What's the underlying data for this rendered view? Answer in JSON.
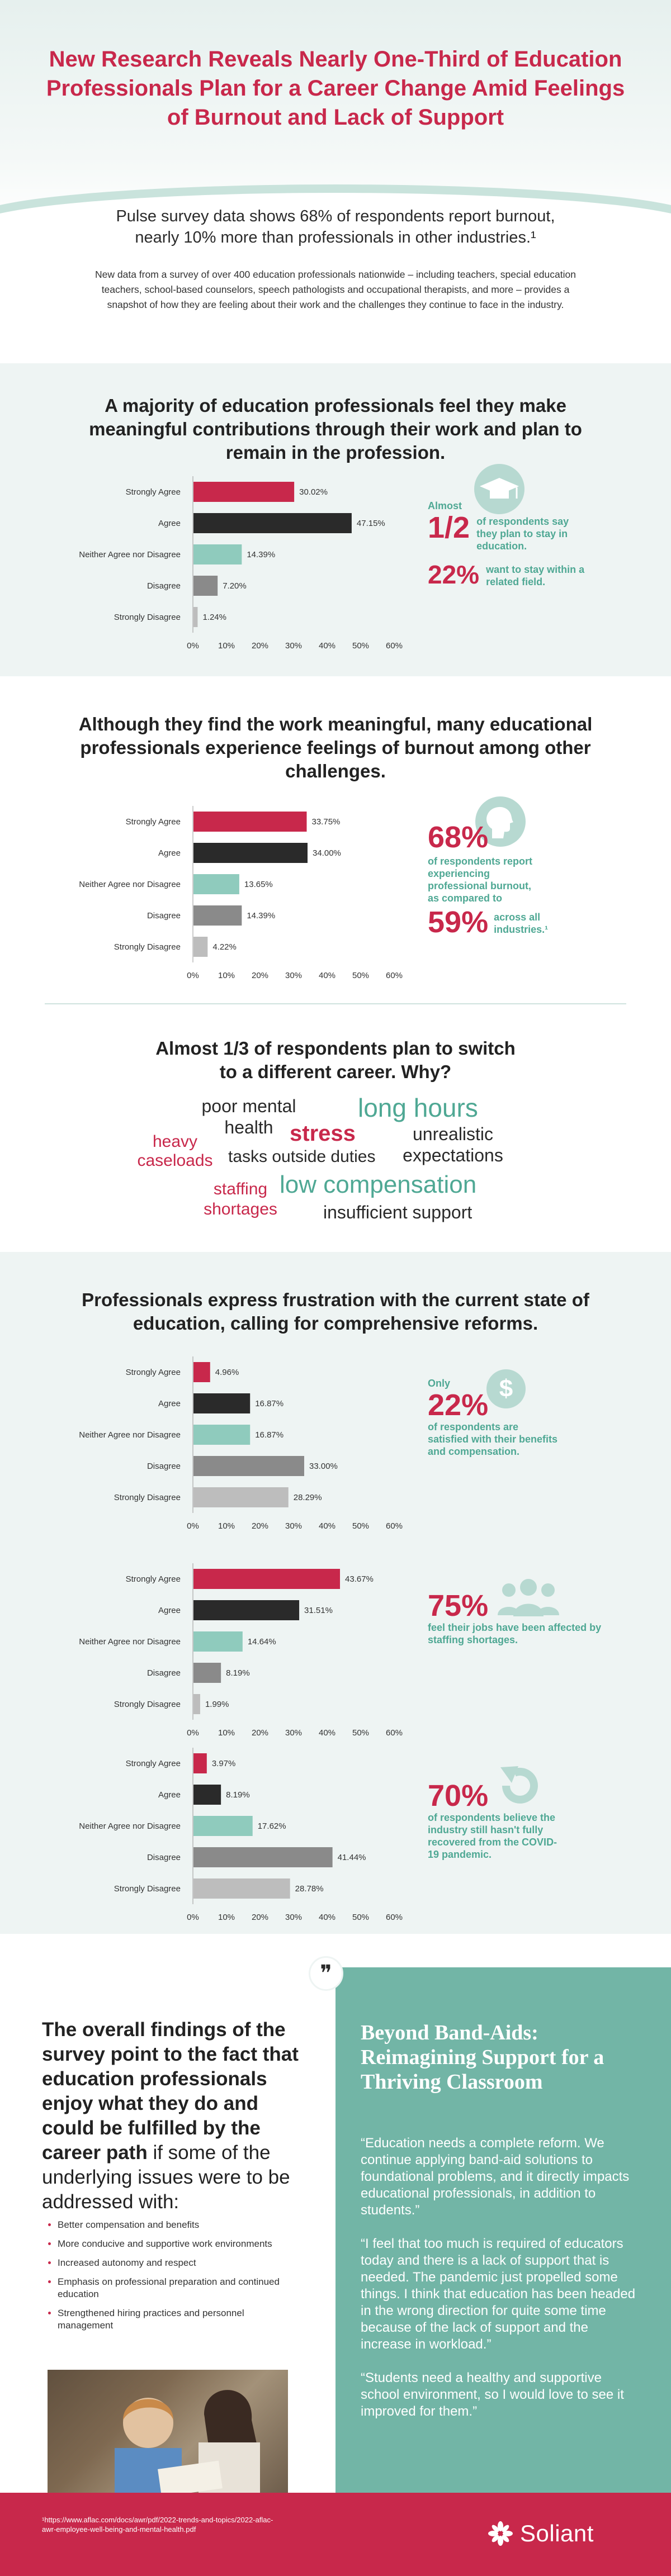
{
  "header": {
    "title": "New Research Reveals Nearly One-Third of Education Professionals Plan for a Career Change Amid Feelings of Burnout and Lack of Support"
  },
  "intro": {
    "lead": "Pulse survey data shows 68% of respondents report burnout, nearly 10% more than professionals in other industries.¹",
    "description": "New data from a survey of over 400 education professionals nationwide – including teachers, special education teachers, school-based counselors, speech pathologists and occupational therapists, and more – provides a snapshot of how they are feeling about their work and the challenges they continue to face in the industry."
  },
  "section1": {
    "title": "A majority of education professionals feel they make meaningful contributions through their work and plan to remain in the profession.",
    "stat_prefix": "Almost",
    "stat_big": "1/2",
    "stat_text": "of respondents say they plan to stay in education.",
    "stat2_big": "22%",
    "stat2_text": "want to stay within a related field."
  },
  "section2": {
    "title": "Although they find the work meaningful, many educational professionals experience feelings of burnout among other challenges.",
    "stat_big": "68%",
    "stat_text": "of respondents report experiencing professional burnout, as compared to",
    "stat2_big": "59%",
    "stat2_text": "across all industries.¹"
  },
  "section3": {
    "title": "Almost 1/3 of respondents plan to switch to a different career. Why?",
    "words": [
      "poor mental health",
      "long hours",
      "heavy caseloads",
      "stress",
      "unrealistic expectations",
      "tasks outside duties",
      "staffing shortages",
      "low compensation",
      "insufficient support"
    ]
  },
  "section4": {
    "title": "Professionals express frustration with the current state of education, calling for comprehensive reforms.",
    "stat_a_prefix": "Only",
    "stat_a_big": "22%",
    "stat_a_text": "of respondents are satisfied with their benefits and compensation.",
    "stat_b_big": "75%",
    "stat_b_text": "feel their jobs have been affected by staffing shortages.",
    "stat_c_big": "70%",
    "stat_c_text": "of respondents believe the industry still hasn't fully recovered from the COVID-19 pandemic."
  },
  "bottom": {
    "findings_bold": "The overall findings of the survey point to the fact that education professionals enjoy what they do and could be fulfilled by the career path",
    "findings_light": "if some of the underlying issues were to be addressed with:",
    "bullets": [
      "Better compensation and benefits",
      "More conducive and supportive work environments",
      "Increased autonomy and respect",
      "Emphasis on professional preparation and continued education",
      "Strengthened hiring practices and personnel management"
    ],
    "quote_title": "Beyond Band-Aids: Reimagining Support for a Thriving Classroom",
    "quotes": [
      "“Education needs a complete reform. We continue applying band-aid solutions to foundational problems, and it directly impacts educational professionals, in addition to students.”",
      "“I feel that too much is required of educators today and there is a lack of support that is needed. The pandemic just propelled some things. I think that education has been headed in the wrong direction for quite some time because of the lack of support and the increase in workload.”",
      "“Students need a healthy and supportive school environment, so I would love to see it improved for them.”"
    ],
    "quote_mark": "❞"
  },
  "footer": {
    "source": "¹https://www.aflac.com/docs/awr/pdf/2022-trends-and-topics/2022-aflac-awr-employee-well-being-and-mental-health.pdf",
    "brand": "Soliant"
  },
  "colors": {
    "strongly_agree": "#c8284b",
    "agree": "#2a2a2a",
    "neither": "#8fcbbd",
    "disagree": "#8a8a8a",
    "strongly_disagree": "#bdbdbd",
    "accent": "#4fa894"
  },
  "chart_data": [
    {
      "type": "bar",
      "orientation": "horizontal",
      "categories": [
        "Strongly Agree",
        "Agree",
        "Neither Agree nor Disagree",
        "Disagree",
        "Strongly Disagree"
      ],
      "values": [
        30.02,
        47.15,
        14.39,
        7.2,
        1.24
      ],
      "labels": [
        "30.02%",
        "47.15%",
        "14.39%",
        "7.20%",
        "1.24%"
      ],
      "xticks": [
        "0%",
        "10%",
        "20%",
        "30%",
        "40%",
        "50%",
        "60%"
      ],
      "xlim": [
        0,
        60
      ]
    },
    {
      "type": "bar",
      "orientation": "horizontal",
      "categories": [
        "Strongly Agree",
        "Agree",
        "Neither Agree nor Disagree",
        "Disagree",
        "Strongly Disagree"
      ],
      "values": [
        33.75,
        34.0,
        13.65,
        14.39,
        4.22
      ],
      "labels": [
        "33.75%",
        "34.00%",
        "13.65%",
        "14.39%",
        "4.22%"
      ],
      "xticks": [
        "0%",
        "10%",
        "20%",
        "30%",
        "40%",
        "50%",
        "60%"
      ],
      "xlim": [
        0,
        60
      ]
    },
    {
      "type": "bar",
      "orientation": "horizontal",
      "categories": [
        "Strongly Agree",
        "Agree",
        "Neither Agree nor Disagree",
        "Disagree",
        "Strongly Disagree"
      ],
      "values": [
        4.96,
        16.87,
        16.87,
        33.0,
        28.29
      ],
      "labels": [
        "4.96%",
        "16.87%",
        "16.87%",
        "33.00%",
        "28.29%"
      ],
      "xticks": [
        "0%",
        "10%",
        "20%",
        "30%",
        "40%",
        "50%",
        "60%"
      ],
      "xlim": [
        0,
        60
      ]
    },
    {
      "type": "bar",
      "orientation": "horizontal",
      "categories": [
        "Strongly Agree",
        "Agree",
        "Neither Agree nor Disagree",
        "Disagree",
        "Strongly Disagree"
      ],
      "values": [
        43.67,
        31.51,
        14.64,
        8.19,
        1.99
      ],
      "labels": [
        "43.67%",
        "31.51%",
        "14.64%",
        "8.19%",
        "1.99%"
      ],
      "xticks": [
        "0%",
        "10%",
        "20%",
        "30%",
        "40%",
        "50%",
        "60%"
      ],
      "xlim": [
        0,
        60
      ]
    },
    {
      "type": "bar",
      "orientation": "horizontal",
      "categories": [
        "Strongly Agree",
        "Agree",
        "Neither Agree nor Disagree",
        "Disagree",
        "Strongly Disagree"
      ],
      "values": [
        3.97,
        8.19,
        17.62,
        41.44,
        28.78
      ],
      "labels": [
        "3.97%",
        "8.19%",
        "17.62%",
        "41.44%",
        "28.78%"
      ],
      "xticks": [
        "0%",
        "10%",
        "20%",
        "30%",
        "40%",
        "50%",
        "60%"
      ],
      "xlim": [
        0,
        60
      ]
    }
  ]
}
